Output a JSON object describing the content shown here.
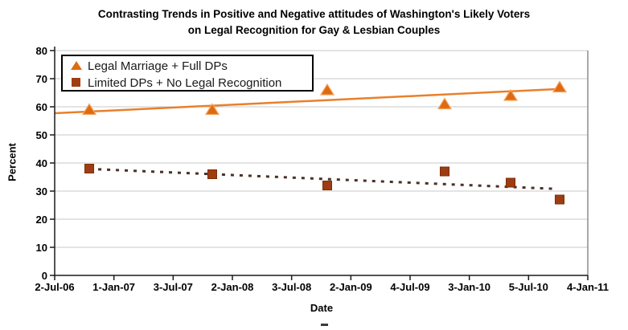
{
  "title": {
    "line1": "Contrasting Trends in Positive and Negative attitudes of Washington's Likely Voters",
    "line2": "on Legal Recognition for Gay & Lesbian Couples"
  },
  "colors": {
    "positive_marker": "#e06a10",
    "positive_marker_border": "#f2a35e",
    "positive_line": "#e8802d",
    "negative_marker": "#9e3d12",
    "negative_marker_border": "#7e2d08",
    "negative_line": "#4a3126",
    "gridline": "#c9c9c9",
    "axis": "#1a1a1a",
    "plot_right_border": "#8c8c8c",
    "legend_border": "#000000"
  },
  "chart_data": {
    "type": "scatter",
    "title": "Contrasting Trends in Positive and Negative attitudes of Washington's Likely Voters on Legal Recognition for Gay & Lesbian Couples",
    "xlabel": "Date",
    "ylabel": "Percent",
    "ylim": [
      0,
      80
    ],
    "y_tick_step": 10,
    "y_tick_labels": [
      "0",
      "10",
      "20",
      "30",
      "40",
      "50",
      "60",
      "70",
      "80"
    ],
    "x_tick_labels": [
      "2-Jul-06",
      "1-Jan-07",
      "3-Jul-07",
      "2-Jan-08",
      "3-Jul-08",
      "2-Jan-09",
      "4-Jul-09",
      "3-Jan-10",
      "5-Jul-10",
      "4-Jan-11"
    ],
    "grid": true,
    "legend_position": "top-left-inside",
    "series": [
      {
        "name": "Legal Marriage + Full DPs",
        "marker": "triangle",
        "line_style": "solid",
        "points": [
          {
            "x_approx_date": "Oct-06",
            "x_frac": 0.0649,
            "y": 59
          },
          {
            "x_approx_date": "Nov-07",
            "x_frac": 0.2956,
            "y": 59
          },
          {
            "x_approx_date": "Oct-08",
            "x_frac": 0.5113,
            "y": 66
          },
          {
            "x_approx_date": "Oct-09",
            "x_frac": 0.7315,
            "y": 61
          },
          {
            "x_approx_date": "May-10",
            "x_frac": 0.8552,
            "y": 64
          },
          {
            "x_approx_date": "Oct-10",
            "x_frac": 0.9472,
            "y": 67
          }
        ],
        "trendline": {
          "style": "solid",
          "x_frac": [
            0.0,
            0.953
          ],
          "y": [
            57.7,
            66.4
          ]
        }
      },
      {
        "name": "Limited DPs + No Legal Recognition",
        "marker": "square",
        "line_style": "dashed",
        "points": [
          {
            "x_approx_date": "Oct-06",
            "x_frac": 0.0649,
            "y": 38
          },
          {
            "x_approx_date": "Nov-07",
            "x_frac": 0.2956,
            "y": 36
          },
          {
            "x_approx_date": "Oct-08",
            "x_frac": 0.5113,
            "y": 32
          },
          {
            "x_approx_date": "Oct-09",
            "x_frac": 0.7315,
            "y": 37
          },
          {
            "x_approx_date": "May-10",
            "x_frac": 0.8552,
            "y": 33
          },
          {
            "x_approx_date": "Oct-10",
            "x_frac": 0.9472,
            "y": 27
          }
        ],
        "trendline": {
          "style": "dashed",
          "x_frac": [
            0.065,
            0.938
          ],
          "y": [
            37.9,
            30.8
          ]
        }
      }
    ]
  }
}
